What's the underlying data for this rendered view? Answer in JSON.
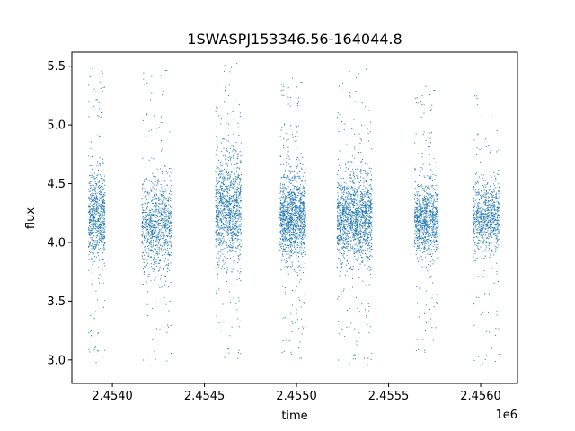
{
  "chart_data": {
    "type": "scatter",
    "title": "1SWASPJ153346.56-164044.8",
    "xlabel": "time",
    "ylabel": "flux",
    "x_offset_label": "1e6",
    "xlim": [
      2.45378,
      2.4562
    ],
    "ylim": [
      2.8,
      5.62
    ],
    "x_ticks": [
      2.454,
      2.4545,
      2.455,
      2.4555,
      2.456
    ],
    "x_tick_labels": [
      "2.4540",
      "2.4545",
      "2.4550",
      "2.4555",
      "2.4560"
    ],
    "y_ticks": [
      3.0,
      3.5,
      4.0,
      4.5,
      5.0,
      5.5
    ],
    "y_tick_labels": [
      "3.0",
      "3.5",
      "4.0",
      "4.5",
      "5.0",
      "5.5"
    ],
    "grid": false,
    "marker_color": "#1f77b4",
    "series": [
      {
        "segments": [
          {
            "x_start": 2.45387,
            "x_end": 2.45396,
            "y_center": 4.22,
            "y_spread": 0.18,
            "y_min": 2.95,
            "y_max": 5.52,
            "points": 700
          },
          {
            "x_start": 2.45416,
            "x_end": 2.45432,
            "y_center": 4.15,
            "y_spread": 0.2,
            "y_min": 2.95,
            "y_max": 5.5,
            "points": 900
          },
          {
            "x_start": 2.45456,
            "x_end": 2.4547,
            "y_center": 4.28,
            "y_spread": 0.22,
            "y_min": 3.0,
            "y_max": 5.55,
            "points": 1100
          },
          {
            "x_start": 2.45491,
            "x_end": 2.45505,
            "y_center": 4.22,
            "y_spread": 0.18,
            "y_min": 2.95,
            "y_max": 5.4,
            "points": 1300
          },
          {
            "x_start": 2.45522,
            "x_end": 2.45541,
            "y_center": 4.2,
            "y_spread": 0.18,
            "y_min": 2.95,
            "y_max": 5.5,
            "points": 1500
          },
          {
            "x_start": 2.45564,
            "x_end": 2.45577,
            "y_center": 4.2,
            "y_spread": 0.15,
            "y_min": 2.97,
            "y_max": 5.33,
            "points": 900
          },
          {
            "x_start": 2.45596,
            "x_end": 2.4561,
            "y_center": 4.22,
            "y_spread": 0.15,
            "y_min": 2.95,
            "y_max": 5.3,
            "points": 800
          }
        ]
      }
    ]
  }
}
